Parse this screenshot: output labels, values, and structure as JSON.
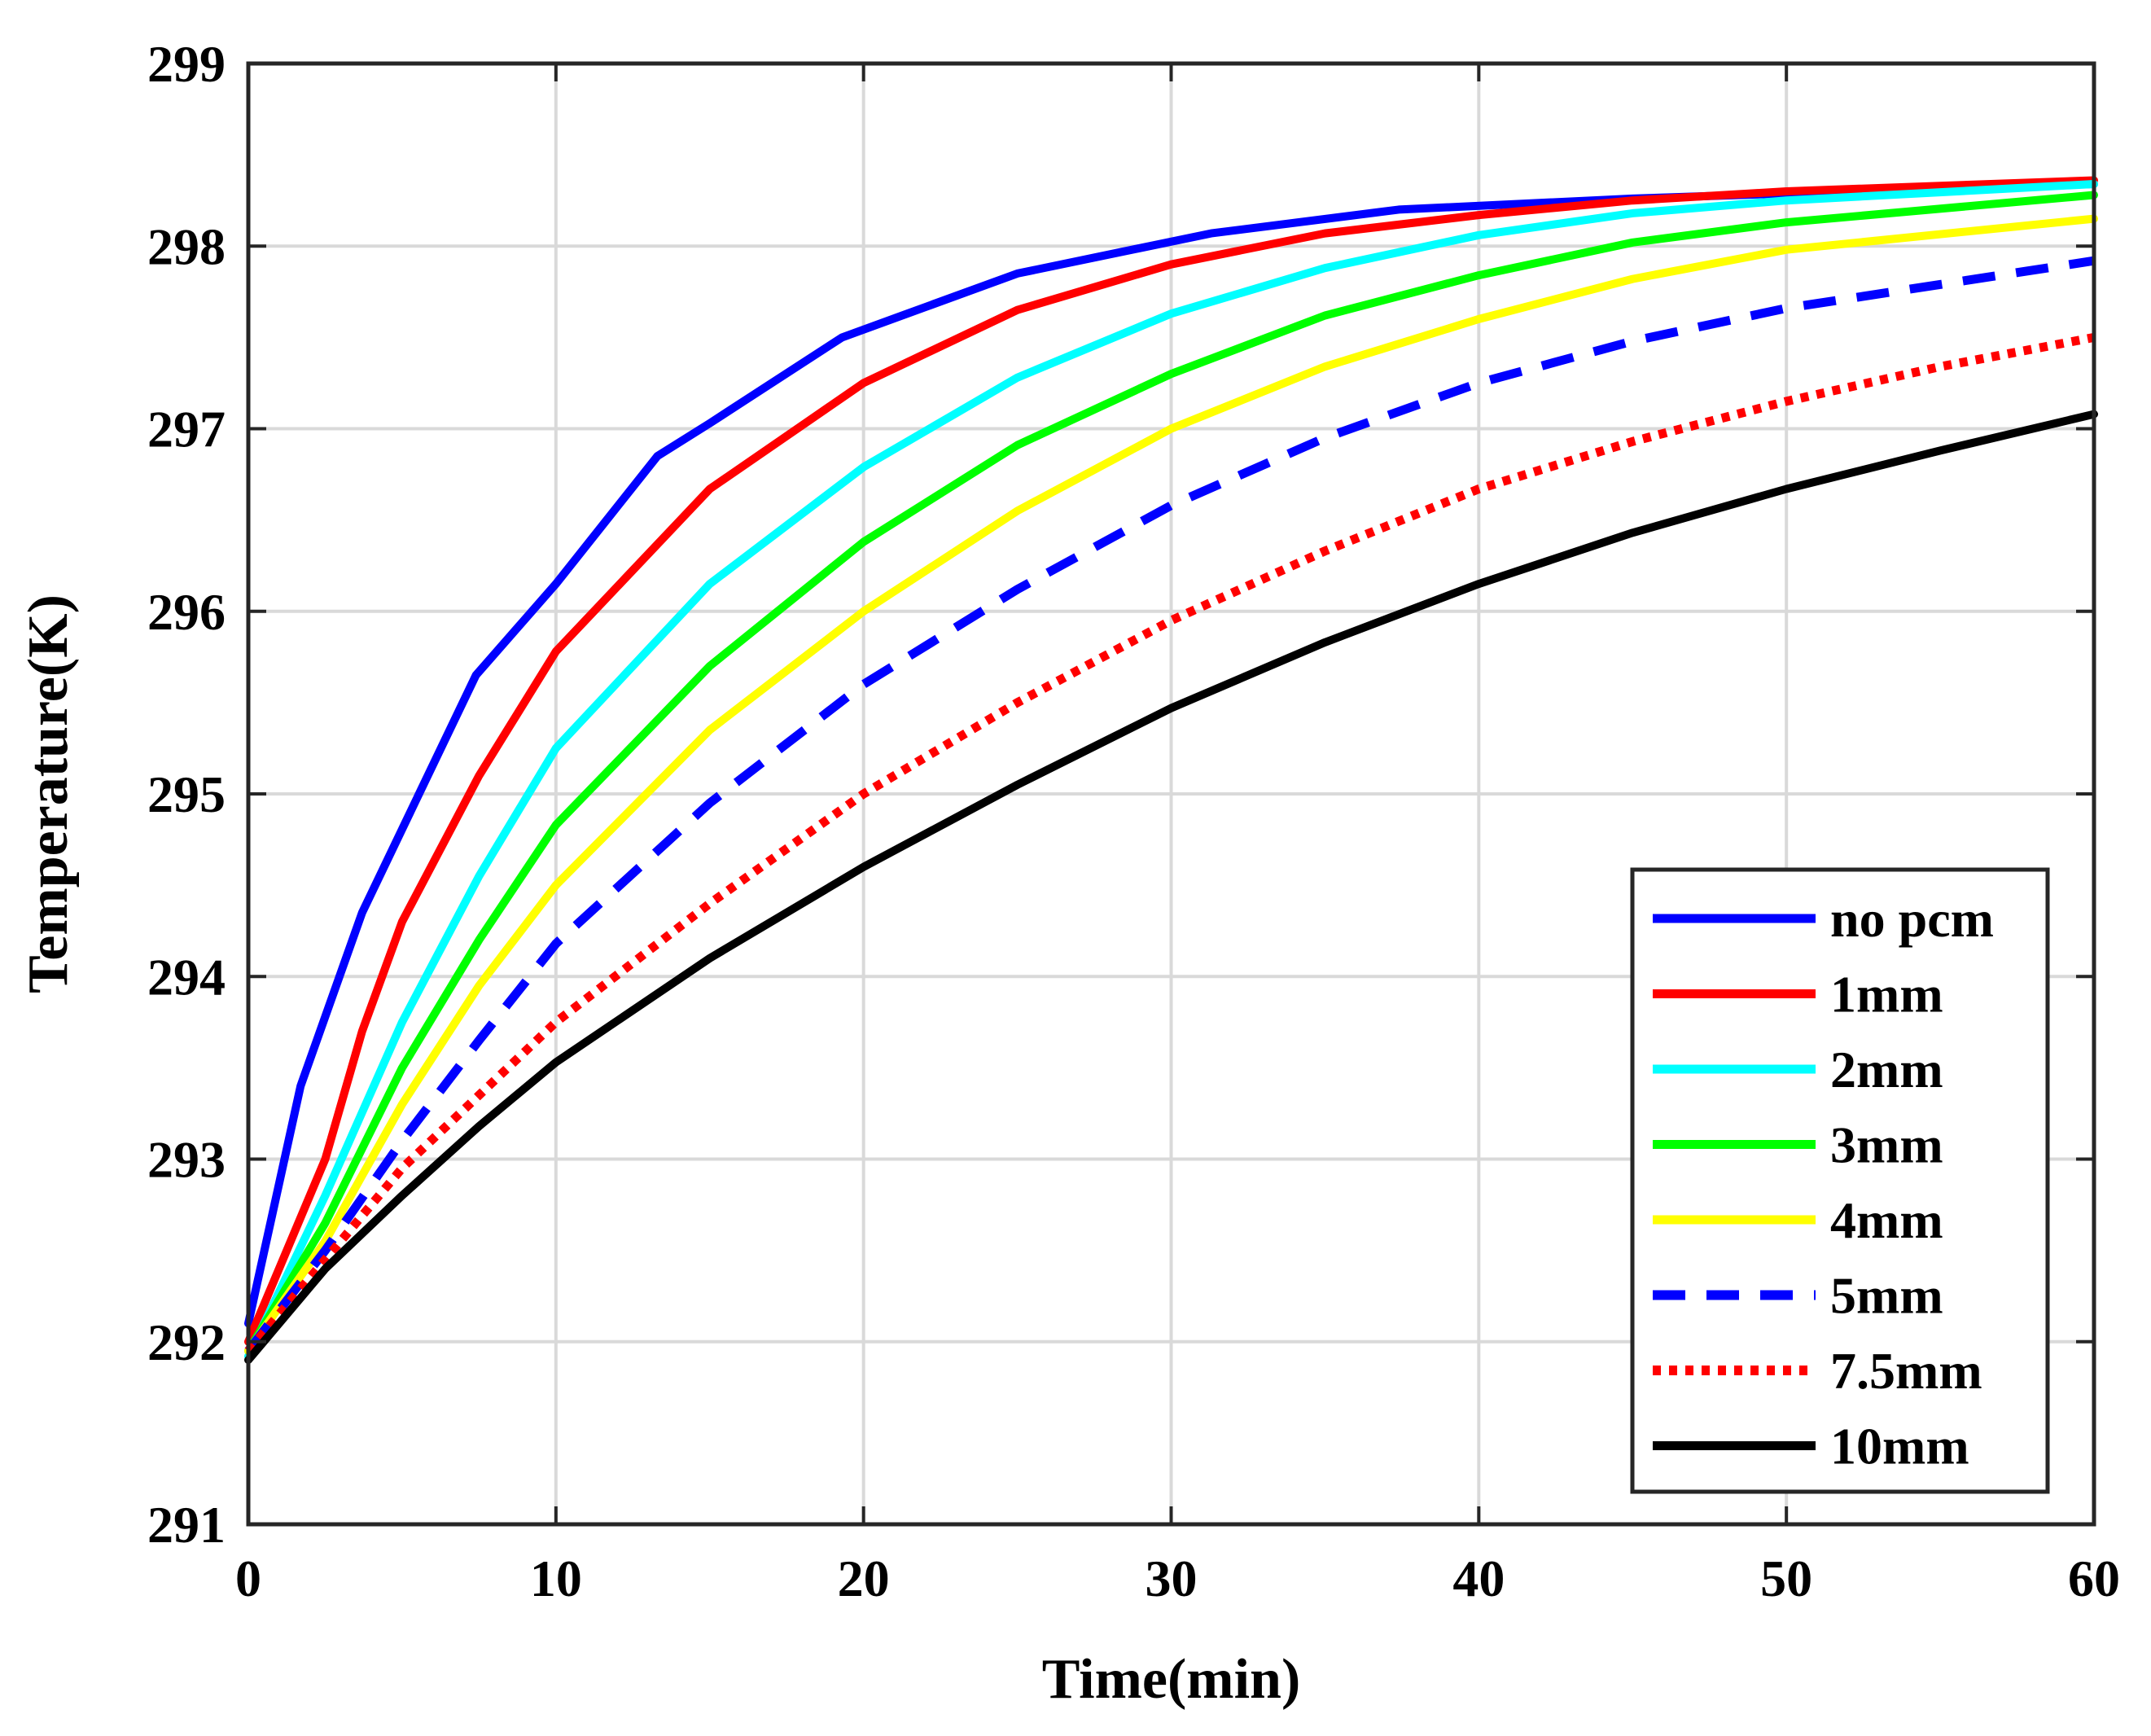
{
  "chart_data": {
    "type": "line",
    "title": "",
    "xlabel": "Time(min)",
    "ylabel": "Temperature(K)",
    "xlim": [
      0,
      60
    ],
    "ylim": [
      291,
      299
    ],
    "xticks": [
      0,
      10,
      20,
      30,
      40,
      50,
      60
    ],
    "yticks": [
      291,
      292,
      293,
      294,
      295,
      296,
      297,
      298,
      299
    ],
    "grid": true,
    "legend_position": "bottom-right",
    "series": [
      {
        "name": "no pcm",
        "color": "#0000ff",
        "style": "solid",
        "points": [
          [
            0,
            292.1
          ],
          [
            1.7,
            293.4
          ],
          [
            3.7,
            294.35
          ],
          [
            7.4,
            295.65
          ],
          [
            10,
            296.15
          ],
          [
            13.3,
            296.85
          ],
          [
            15,
            297.03
          ],
          [
            19.3,
            297.5
          ],
          [
            25,
            297.85
          ],
          [
            31.3,
            298.07
          ],
          [
            37.4,
            298.2
          ],
          [
            45,
            298.26
          ],
          [
            52,
            298.3
          ],
          [
            60,
            298.34
          ]
        ]
      },
      {
        "name": "1mm",
        "color": "#ff0000",
        "style": "solid",
        "points": [
          [
            0,
            292.0
          ],
          [
            2.5,
            293.0
          ],
          [
            3.7,
            293.7
          ],
          [
            5,
            294.3
          ],
          [
            7.5,
            295.1
          ],
          [
            10,
            295.78
          ],
          [
            15,
            296.67
          ],
          [
            20,
            297.25
          ],
          [
            25,
            297.65
          ],
          [
            30,
            297.9
          ],
          [
            35,
            298.07
          ],
          [
            40,
            298.17
          ],
          [
            45,
            298.25
          ],
          [
            50,
            298.3
          ],
          [
            60,
            298.36
          ]
        ]
      },
      {
        "name": "2mm",
        "color": "#00ffff",
        "style": "solid",
        "points": [
          [
            0,
            291.92
          ],
          [
            2.5,
            292.8
          ],
          [
            5,
            293.75
          ],
          [
            7.5,
            294.55
          ],
          [
            10,
            295.25
          ],
          [
            15,
            296.15
          ],
          [
            20,
            296.79
          ],
          [
            25,
            297.28
          ],
          [
            30,
            297.63
          ],
          [
            35,
            297.88
          ],
          [
            40,
            298.06
          ],
          [
            45,
            298.18
          ],
          [
            50,
            298.25
          ],
          [
            60,
            298.34
          ]
        ]
      },
      {
        "name": "3mm",
        "color": "#00ff00",
        "style": "solid",
        "points": [
          [
            0,
            291.95
          ],
          [
            2.5,
            292.65
          ],
          [
            5,
            293.5
          ],
          [
            7.5,
            294.2
          ],
          [
            10,
            294.83
          ],
          [
            15,
            295.7
          ],
          [
            20,
            296.38
          ],
          [
            25,
            296.91
          ],
          [
            30,
            297.3
          ],
          [
            35,
            297.62
          ],
          [
            40,
            297.84
          ],
          [
            45,
            298.02
          ],
          [
            50,
            298.13
          ],
          [
            60,
            298.28
          ]
        ]
      },
      {
        "name": "4mm",
        "color": "#ffff00",
        "style": "solid",
        "points": [
          [
            0,
            291.95
          ],
          [
            2.5,
            292.55
          ],
          [
            5,
            293.3
          ],
          [
            7.5,
            293.95
          ],
          [
            10,
            294.5
          ],
          [
            15,
            295.35
          ],
          [
            20,
            296.0
          ],
          [
            25,
            296.55
          ],
          [
            30,
            297.0
          ],
          [
            35,
            297.34
          ],
          [
            40,
            297.6
          ],
          [
            45,
            297.82
          ],
          [
            50,
            297.98
          ],
          [
            60,
            298.15
          ]
        ]
      },
      {
        "name": "5mm",
        "color": "#0000ff",
        "style": "dashed",
        "points": [
          [
            0,
            291.95
          ],
          [
            2.5,
            292.5
          ],
          [
            5,
            293.1
          ],
          [
            7.5,
            293.65
          ],
          [
            10,
            294.18
          ],
          [
            15,
            294.95
          ],
          [
            20,
            295.6
          ],
          [
            25,
            296.12
          ],
          [
            30,
            296.58
          ],
          [
            35,
            296.95
          ],
          [
            40,
            297.25
          ],
          [
            45,
            297.48
          ],
          [
            50,
            297.66
          ],
          [
            60,
            297.92
          ]
        ]
      },
      {
        "name": "7.5mm",
        "color": "#ff0000",
        "style": "dotted",
        "points": [
          [
            0,
            291.95
          ],
          [
            2.5,
            292.45
          ],
          [
            5,
            292.95
          ],
          [
            7.5,
            293.35
          ],
          [
            10,
            293.75
          ],
          [
            15,
            294.4
          ],
          [
            20,
            295.0
          ],
          [
            25,
            295.5
          ],
          [
            30,
            295.95
          ],
          [
            35,
            296.33
          ],
          [
            40,
            296.67
          ],
          [
            45,
            296.93
          ],
          [
            50,
            297.15
          ],
          [
            55,
            297.34
          ],
          [
            60,
            297.5
          ]
        ]
      },
      {
        "name": "10mm",
        "color": "#000000",
        "style": "solid",
        "points": [
          [
            0,
            291.9
          ],
          [
            2.5,
            292.4
          ],
          [
            5,
            292.8
          ],
          [
            7.5,
            293.18
          ],
          [
            10,
            293.53
          ],
          [
            15,
            294.1
          ],
          [
            20,
            294.6
          ],
          [
            25,
            295.05
          ],
          [
            30,
            295.47
          ],
          [
            35,
            295.83
          ],
          [
            40,
            296.15
          ],
          [
            45,
            296.43
          ],
          [
            50,
            296.67
          ],
          [
            55,
            296.88
          ],
          [
            60,
            297.08
          ]
        ]
      }
    ]
  }
}
